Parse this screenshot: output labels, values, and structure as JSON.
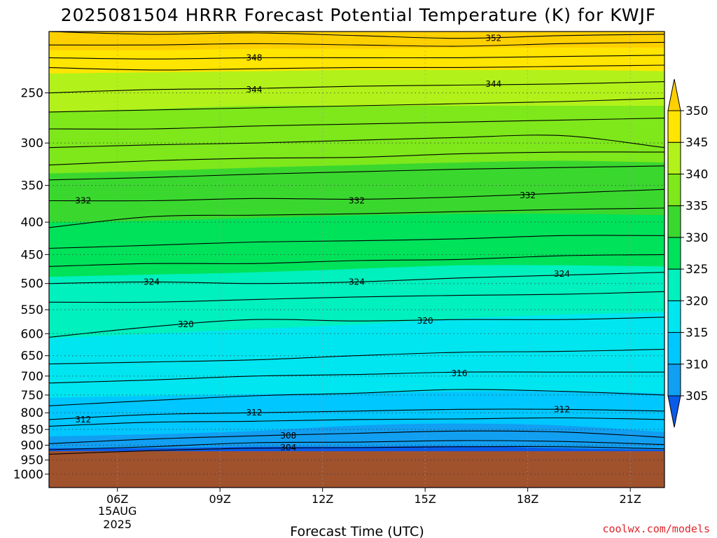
{
  "chart_data": {
    "type": "contour",
    "title": "2025081504 HRRR Forecast Potential Temperature (K) for KWJF",
    "xlabel": "Forecast Time (UTC)",
    "ylabel": "",
    "x_ticks": [
      "06Z",
      "09Z",
      "12Z",
      "15Z",
      "18Z",
      "21Z"
    ],
    "x_date_label": [
      "15AUG",
      "2025"
    ],
    "x_tick_hours": [
      6,
      9,
      12,
      15,
      18,
      21
    ],
    "xlim": [
      4.0,
      22.0
    ],
    "y_scale": "log",
    "y_ticks": [
      250,
      300,
      350,
      400,
      450,
      500,
      550,
      600,
      650,
      700,
      750,
      800,
      850,
      900,
      950,
      1000
    ],
    "ylim": [
      1050,
      200
    ],
    "grid": true,
    "colorbar": {
      "ticks": [
        305,
        310,
        315,
        320,
        325,
        330,
        335,
        340,
        345,
        350
      ],
      "colors": [
        "#0a5be8",
        "#119ff2",
        "#00c7ff",
        "#00e6f0",
        "#00f0be",
        "#00e25a",
        "#3ad82f",
        "#7ee81b",
        "#b2f21a",
        "#ffe500",
        "#ffd000"
      ],
      "extend": "both"
    },
    "fill_bands": [
      {
        "range": "<305",
        "color": "#0a5be8",
        "top_levels": [
          910,
          910,
          905,
          905,
          903,
          910,
          915
        ]
      },
      {
        "range": "305-310",
        "color": "#119ff2",
        "top_levels": [
          872,
          865,
          855,
          838,
          832,
          838,
          858
        ]
      },
      {
        "range": "310-315",
        "color": "#00c7ff",
        "top_levels": [
          757,
          752,
          748,
          745,
          740,
          740,
          745
        ]
      },
      {
        "range": "315-320",
        "color": "#00e6f0",
        "top_levels": [
          610,
          600,
          590,
          580,
          568,
          560,
          555
        ]
      },
      {
        "range": "320-325",
        "color": "#00f0be",
        "top_levels": [
          488,
          484,
          480,
          474,
          468,
          468,
          470
        ]
      },
      {
        "range": "325-330",
        "color": "#00e25a",
        "top_levels": [
          400,
          398,
          394,
          390,
          388,
          388,
          390
        ]
      },
      {
        "range": "330-335",
        "color": "#3ad82f",
        "top_levels": [
          335,
          332,
          328,
          325,
          322,
          320,
          322
        ]
      },
      {
        "range": "335-340",
        "color": "#7ee81b",
        "top_levels": [
          268,
          265,
          262,
          262,
          262,
          262,
          262
        ]
      },
      {
        "range": "340-345",
        "color": "#b2f21a",
        "top_levels": [
          233,
          232,
          231,
          230,
          230,
          230,
          231
        ]
      },
      {
        "range": "345-350",
        "color": "#ffe500",
        "top_levels": [
          214,
          214,
          213,
          213,
          212,
          212,
          212
        ]
      },
      {
        "range": ">350",
        "color": "#ffd000",
        "top_levels": [
          200,
          200,
          200,
          200,
          200,
          200,
          200
        ]
      }
    ],
    "band_x_hours": [
      4,
      7,
      10,
      13,
      16,
      19,
      22
    ],
    "terrain": {
      "top_level": 920,
      "color": "#a0522d"
    },
    "contours": [
      {
        "value": 352,
        "levels": [
          200,
          202,
          201,
          203,
          205,
          203,
          202
        ]
      },
      {
        "value": 350,
        "levels": [
          210,
          210,
          209,
          210,
          211,
          209,
          208
        ]
      },
      {
        "value": 348,
        "levels": [
          220,
          221,
          220,
          220,
          220,
          219,
          218
        ]
      },
      {
        "value": 346,
        "levels": [
          228,
          230,
          229,
          228,
          228,
          227,
          226
        ]
      },
      {
        "value": 344,
        "levels": [
          250,
          247,
          246,
          244,
          243,
          242,
          240
        ]
      },
      {
        "value": 342,
        "levels": [
          268,
          266,
          264,
          262,
          260,
          258,
          255
        ]
      },
      {
        "value": 340,
        "levels": [
          285,
          285,
          282,
          280,
          278,
          276,
          274
        ]
      },
      {
        "value": 338,
        "levels": [
          305,
          302,
          300,
          297,
          294,
          292,
          305
        ]
      },
      {
        "value": 336,
        "levels": [
          325,
          320,
          317,
          316,
          312,
          310,
          310
        ]
      },
      {
        "value": 334,
        "levels": [
          343,
          340,
          336,
          333,
          330,
          328,
          326
        ]
      },
      {
        "value": 332,
        "levels": [
          370,
          370,
          367,
          368,
          365,
          360,
          355
        ]
      },
      {
        "value": 330,
        "levels": [
          408,
          392,
          390,
          388,
          385,
          382,
          380
        ]
      },
      {
        "value": 328,
        "levels": [
          440,
          435,
          430,
          428,
          425,
          420,
          420
        ]
      },
      {
        "value": 326,
        "levels": [
          470,
          465,
          465,
          460,
          458,
          452,
          450
        ]
      },
      {
        "value": 324,
        "levels": [
          500,
          497,
          500,
          497,
          490,
          485,
          480
        ]
      },
      {
        "value": 322,
        "levels": [
          535,
          535,
          530,
          525,
          522,
          520,
          515
        ]
      },
      {
        "value": 320,
        "levels": [
          608,
          585,
          570,
          573,
          570,
          570,
          565
        ]
      },
      {
        "value": 318,
        "levels": [
          670,
          665,
          660,
          650,
          642,
          640,
          635
        ]
      },
      {
        "value": 316,
        "levels": [
          718,
          710,
          700,
          696,
          690,
          690,
          690
        ]
      },
      {
        "value": 314,
        "levels": [
          780,
          765,
          752,
          745,
          735,
          740,
          750
        ]
      },
      {
        "value": 312,
        "levels": [
          820,
          805,
          800,
          795,
          790,
          790,
          795
        ]
      },
      {
        "value": 310,
        "levels": [
          840,
          828,
          825,
          820,
          818,
          815,
          820
        ]
      },
      {
        "value": 308,
        "levels": [
          895,
          880,
          870,
          862,
          855,
          858,
          875
        ]
      },
      {
        "value": 306,
        "levels": [
          915,
          905,
          892,
          890,
          885,
          888,
          898
        ]
      },
      {
        "value": 304,
        "levels": [
          930,
          918,
          910,
          908,
          905,
          905,
          912
        ]
      }
    ],
    "contour_labels": [
      {
        "text": "352",
        "hour": 17.0,
        "level": 205
      },
      {
        "text": "348",
        "hour": 10.0,
        "level": 220
      },
      {
        "text": "344",
        "hour": 10.0,
        "level": 247
      },
      {
        "text": "344",
        "hour": 17.0,
        "level": 242
      },
      {
        "text": "332",
        "hour": 5.0,
        "level": 370
      },
      {
        "text": "332",
        "hour": 13.0,
        "level": 370
      },
      {
        "text": "332",
        "hour": 18.0,
        "level": 363
      },
      {
        "text": "324",
        "hour": 7.0,
        "level": 497
      },
      {
        "text": "324",
        "hour": 13.0,
        "level": 497
      },
      {
        "text": "324",
        "hour": 19.0,
        "level": 483
      },
      {
        "text": "320",
        "hour": 8.0,
        "level": 580
      },
      {
        "text": "320",
        "hour": 15.0,
        "level": 573
      },
      {
        "text": "316",
        "hour": 16.0,
        "level": 693
      },
      {
        "text": "312",
        "hour": 5.0,
        "level": 820
      },
      {
        "text": "312",
        "hour": 10.0,
        "level": 800
      },
      {
        "text": "312",
        "hour": 19.0,
        "level": 790
      },
      {
        "text": "308",
        "hour": 11.0,
        "level": 870
      },
      {
        "text": "304",
        "hour": 11.0,
        "level": 908
      }
    ]
  },
  "credit": "coolwx.com/models"
}
